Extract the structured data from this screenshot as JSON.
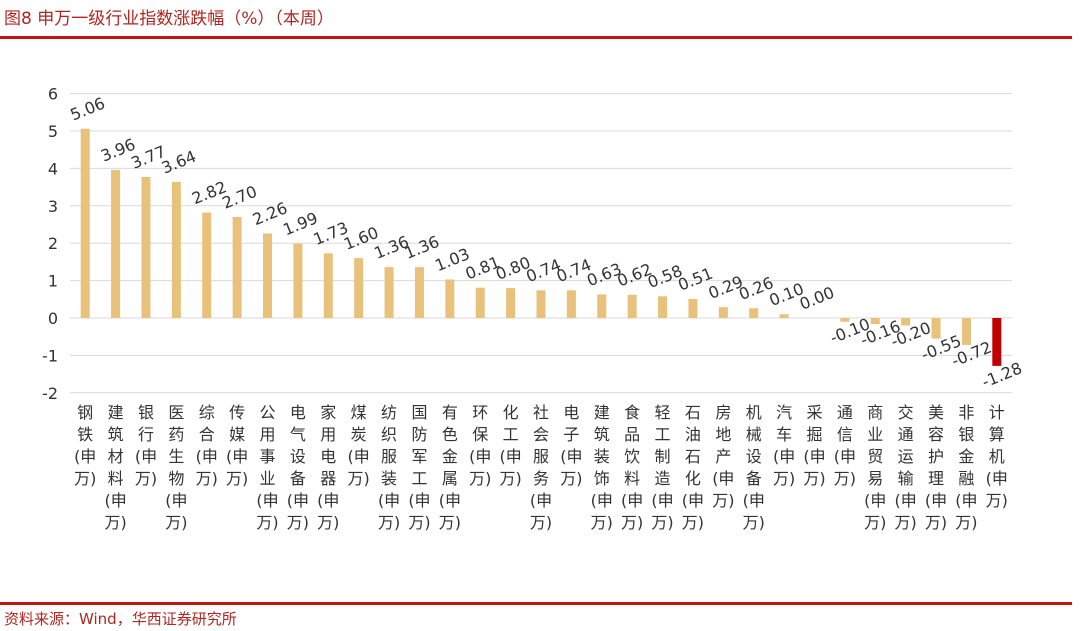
{
  "figure": {
    "title": "图8 申万一级行业指数涨跌幅（%）（本周）",
    "source": "资料来源：Wind，华西证券研究所"
  },
  "colors": {
    "positive_bar": "#E8C17A",
    "highlight_bar": "#C00000",
    "title_text": "#B1261F",
    "rule": "#C2150F",
    "grid": "#D9D9D9"
  },
  "chart_data": {
    "type": "bar",
    "title": "",
    "xlabel": "",
    "ylabel": "",
    "ylim": [
      -2,
      6
    ],
    "yticks": [
      6,
      5,
      4,
      3,
      2,
      1,
      0,
      -1,
      -2
    ],
    "grid": true,
    "categories": [
      "钢铁(申万)",
      "建筑材料(申万)",
      "银行(申万)",
      "医药生物(申万)",
      "综合(申万)",
      "传媒(申万)",
      "公用事业(申万)",
      "电气设备(申万)",
      "家用电器(申万)",
      "煤炭(申万)",
      "纺织服装(申万)",
      "国防军工(申万)",
      "有色金属(申万)",
      "环保(申万)",
      "化工(申万)",
      "社会服务(申万)",
      "电子(申万)",
      "建筑装饰(申万)",
      "食品饮料(申万)",
      "轻工制造(申万)",
      "石油石化(申万)",
      "房地产(申万)",
      "机械设备(申万)",
      "汽车(申万)",
      "采掘(申万)",
      "通信(申万)",
      "商业贸易(申万)",
      "交通运输(申万)",
      "美容护理(申万)",
      "非银金融(申万)",
      "计算机(申万)"
    ],
    "values": [
      5.06,
      3.96,
      3.77,
      3.64,
      2.82,
      2.7,
      2.26,
      1.99,
      1.73,
      1.6,
      1.36,
      1.36,
      1.03,
      0.81,
      0.8,
      0.74,
      0.74,
      0.63,
      0.62,
      0.58,
      0.51,
      0.29,
      0.26,
      0.1,
      0.0,
      -0.1,
      -0.16,
      -0.2,
      -0.55,
      -0.72,
      -1.28
    ],
    "data_labels": [
      "5.06",
      "3.96",
      "3.77",
      "3.64",
      "2.82",
      "2.70",
      "2.26",
      "1.99",
      "1.73",
      "1.60",
      "1.36",
      "1.36",
      "1.03",
      "0.81",
      "0.80",
      "0.74",
      "0.74",
      "0.63",
      "0.62",
      "0.58",
      "0.51",
      "0.29",
      "0.26",
      "0.10",
      "0.00",
      "-0.10",
      "-0.16",
      "-0.20",
      "-0.55",
      "-0.72",
      "-1.28"
    ],
    "highlight_index": 30
  }
}
